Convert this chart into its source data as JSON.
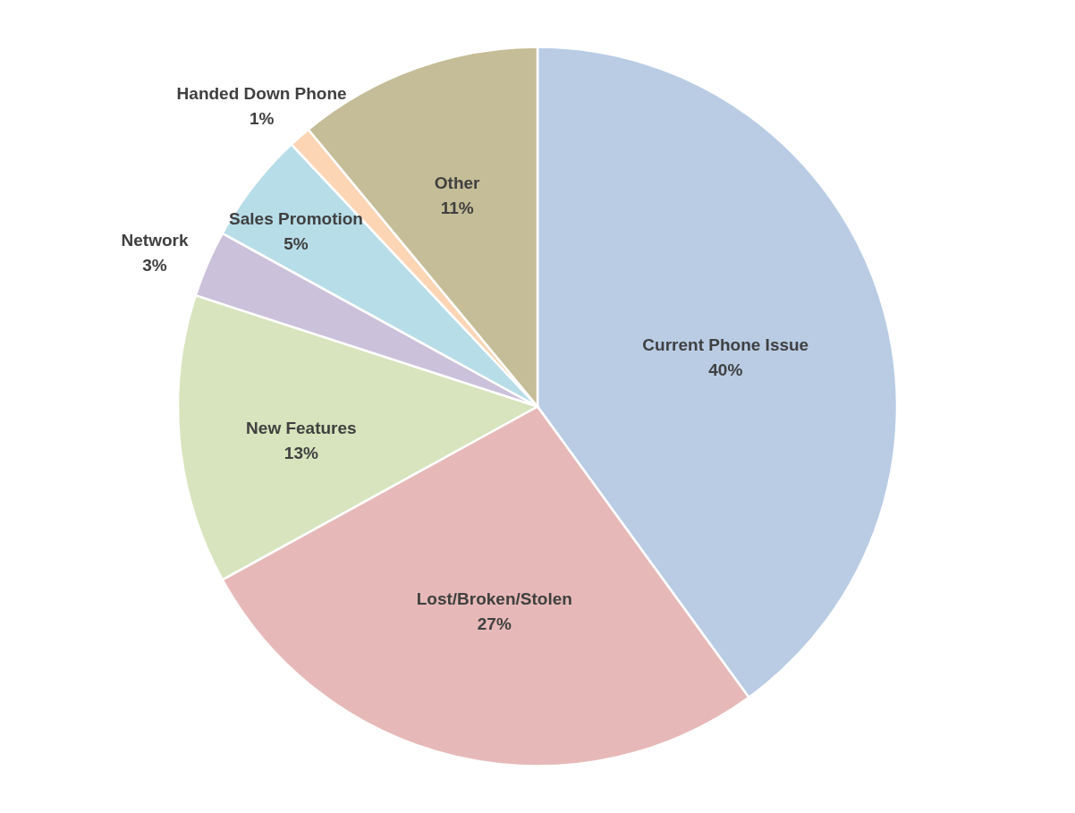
{
  "chart_data": {
    "type": "pie",
    "categories": [
      "Current Phone Issue",
      "Lost/Broken/Stolen",
      "New Features",
      "Network",
      "Sales Promotion",
      "Handed Down Phone",
      "Other"
    ],
    "values": [
      40,
      27,
      13,
      3,
      5,
      1,
      11
    ],
    "value_labels": [
      "40%",
      "27%",
      "13%",
      "3%",
      "5%",
      "1%",
      "11%"
    ],
    "colors": [
      "#b9cce4",
      "#e6b9b8",
      "#d7e4bd",
      "#ccc1da",
      "#b7dde8",
      "#fcd5b5",
      "#c4bd97"
    ]
  }
}
